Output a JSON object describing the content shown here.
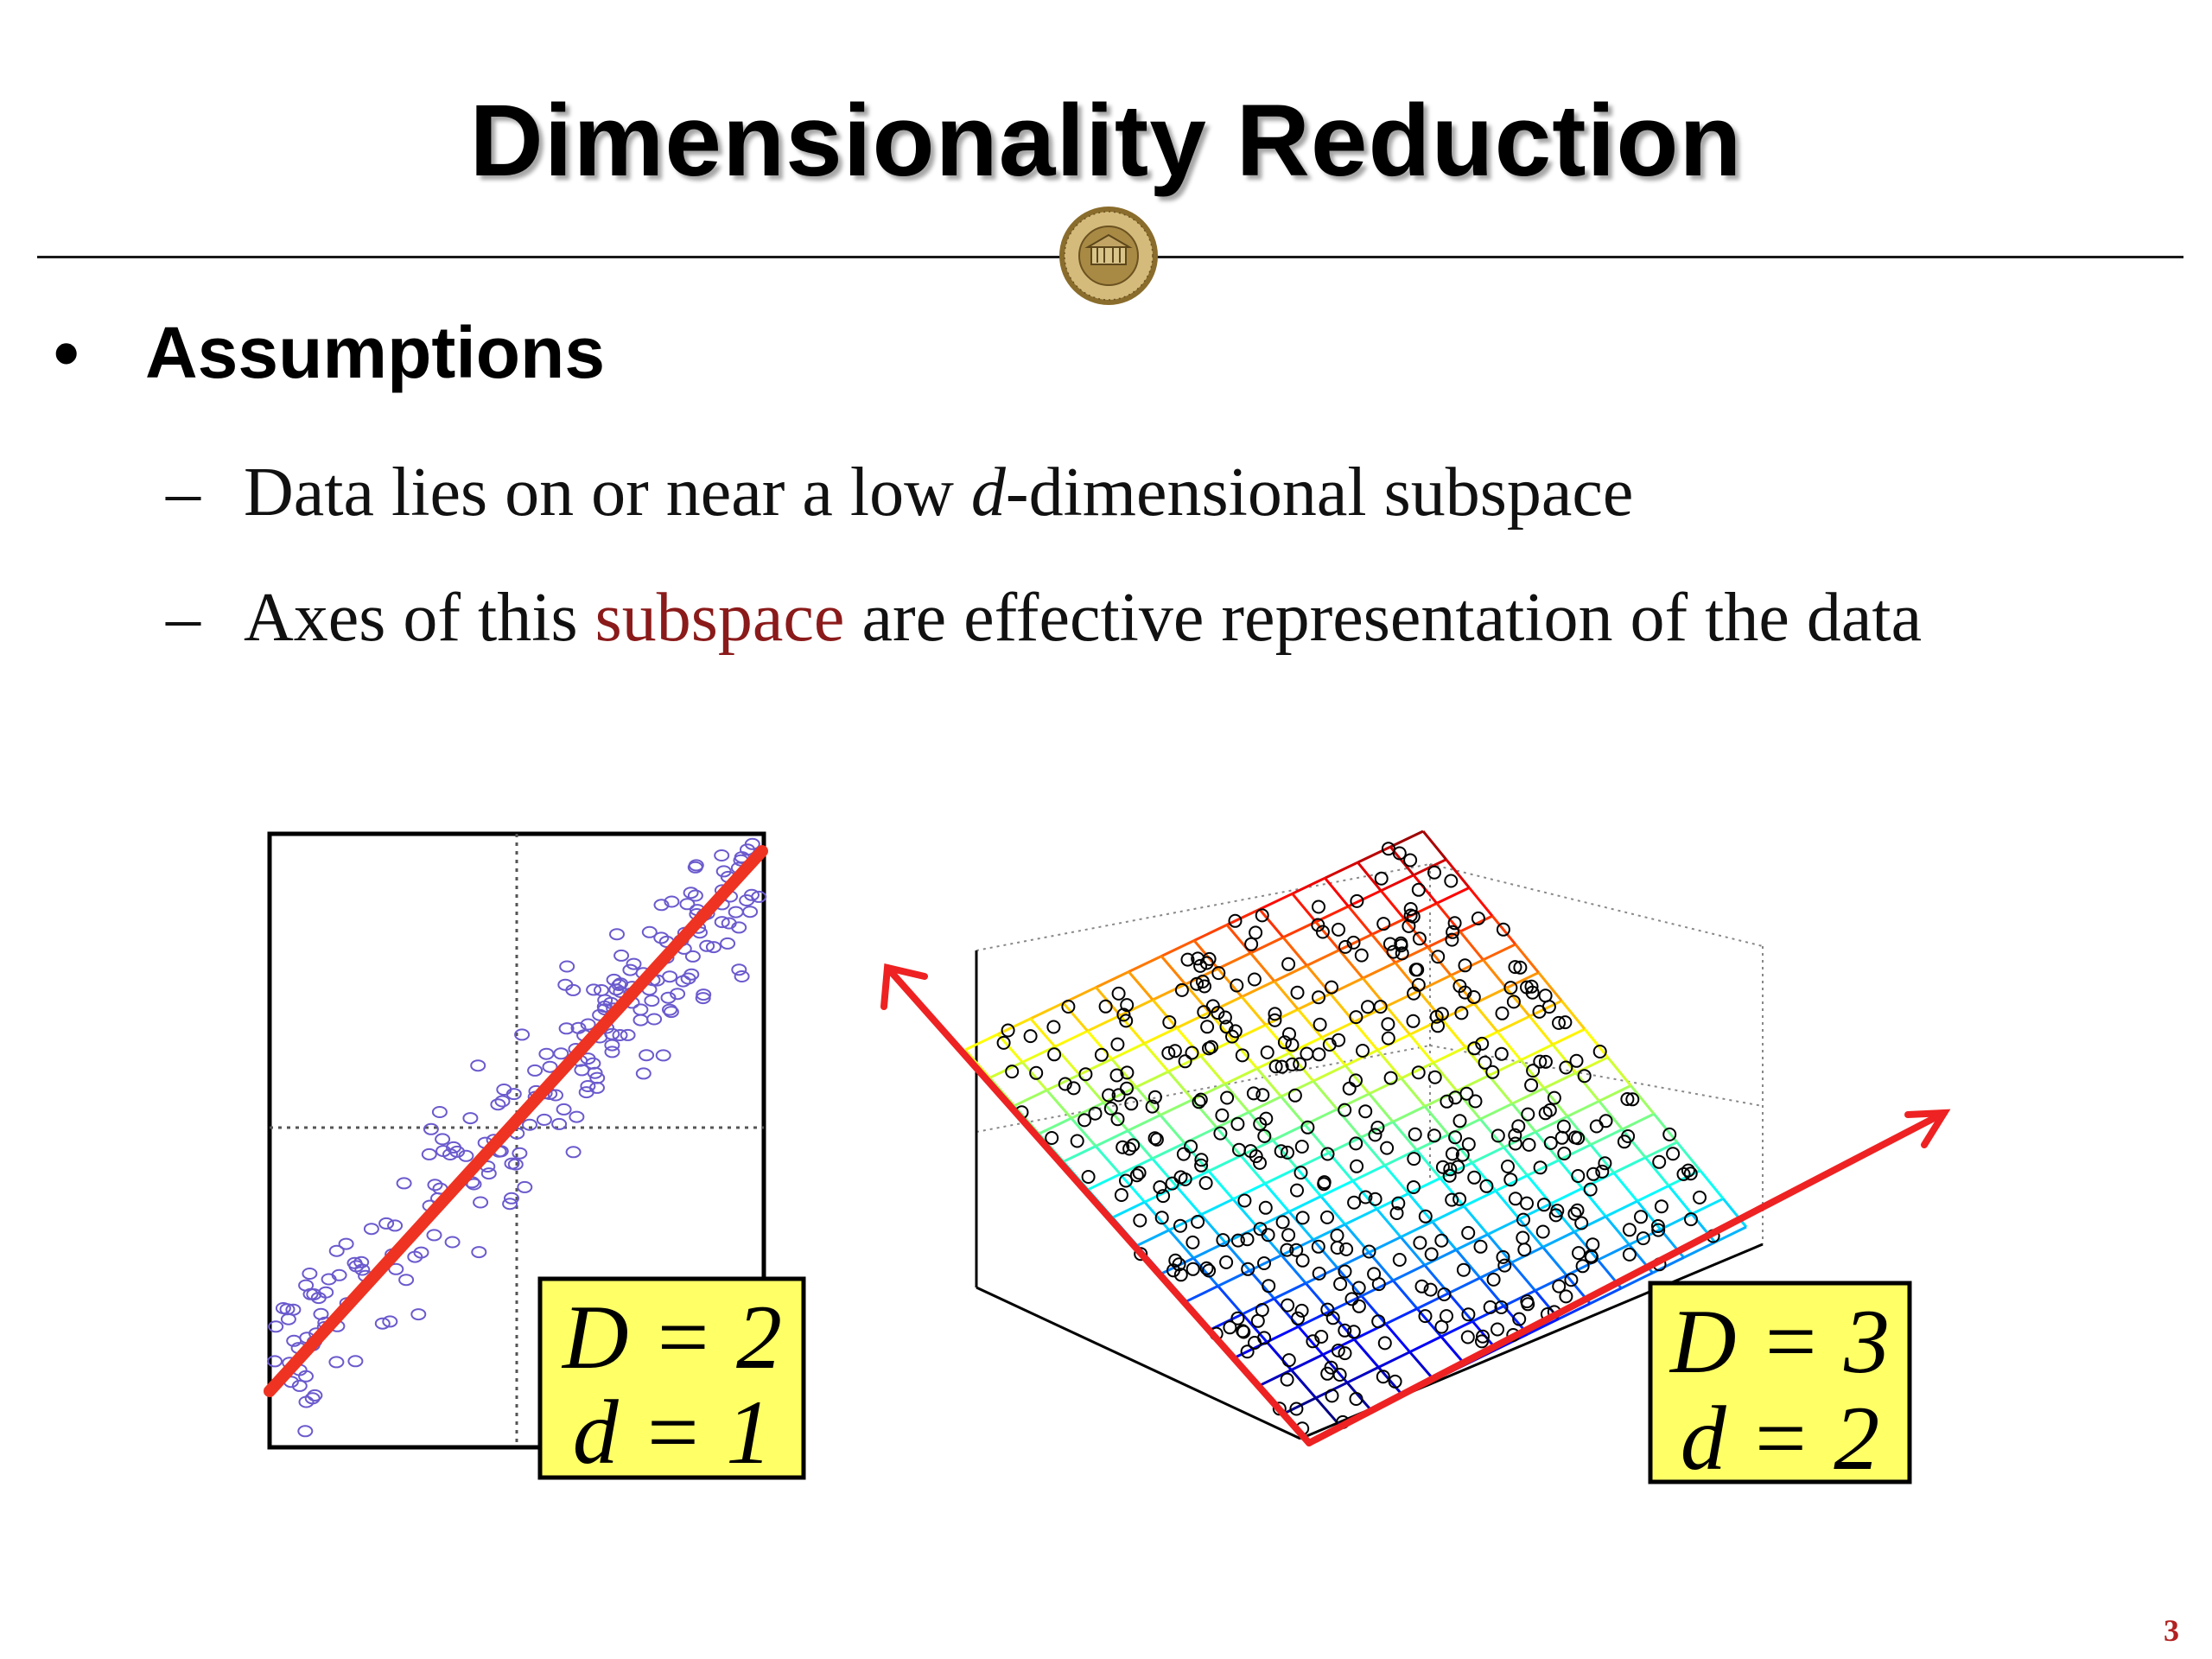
{
  "title": "Dimensionality Reduction",
  "bullet": {
    "symbol": "•",
    "heading": "Assumptions",
    "items": [
      {
        "dash": "–",
        "before": "Data lies on or near a low ",
        "italic": "d",
        "after": "-dimensional subspace"
      },
      {
        "dash": "–",
        "before": "Axes of this ",
        "highlight": "subspace",
        "after": " are effective representation of the data"
      }
    ]
  },
  "figures": {
    "left": {
      "label_line1": "D = 2",
      "label_line2": "d = 1"
    },
    "right": {
      "label_line1": "D = 3",
      "label_line2": "d = 2"
    }
  },
  "colors": {
    "highlight": "#8b1a1a",
    "principal_axis": "#ee3322",
    "scatter_points": "#6a5acd",
    "label_box": "#ffff66"
  },
  "page_number": "3"
}
